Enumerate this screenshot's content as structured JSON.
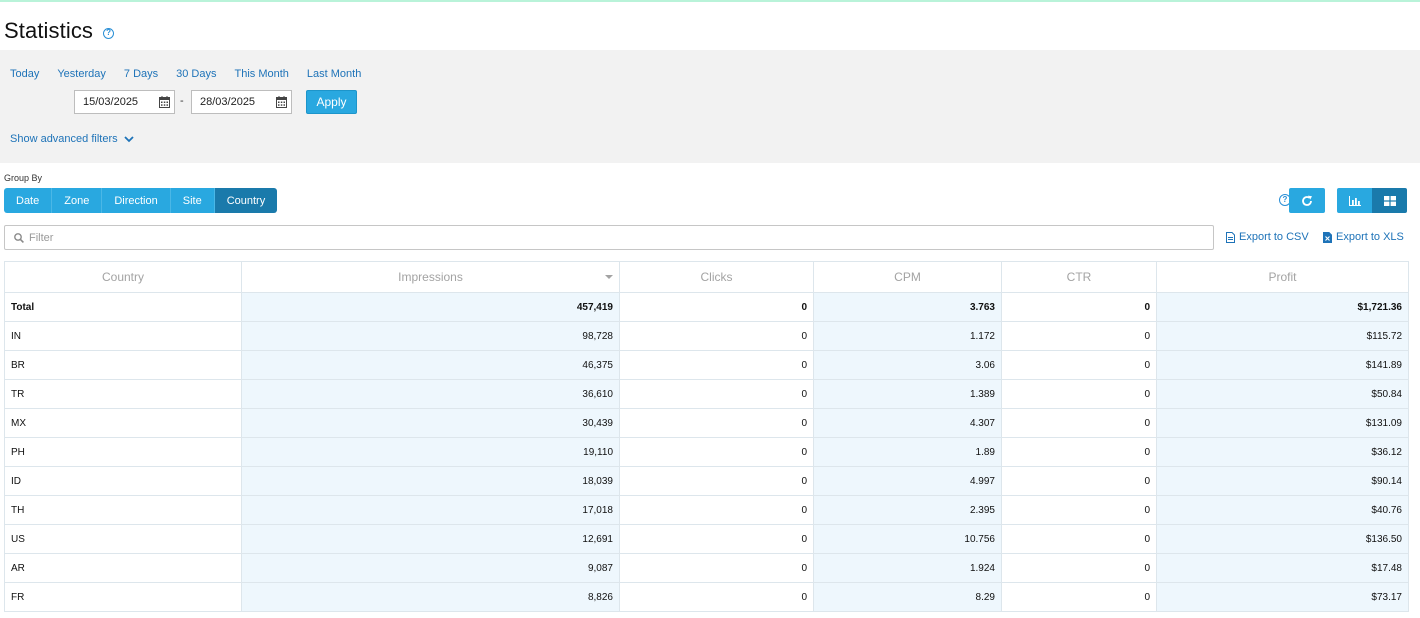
{
  "header": {
    "title": "Statistics"
  },
  "quick_ranges": [
    "Today",
    "Yesterday",
    "7 Days",
    "30 Days",
    "This Month",
    "Last Month"
  ],
  "date_range": {
    "from": "15/03/2025",
    "separator": "-",
    "to": "28/03/2025",
    "apply_label": "Apply"
  },
  "advanced_filters_label": "Show advanced filters",
  "group_by": {
    "label": "Group By",
    "tabs": [
      "Date",
      "Zone",
      "Direction",
      "Site",
      "Country"
    ],
    "active": "Country"
  },
  "filter": {
    "placeholder": "Filter"
  },
  "export": {
    "csv_label": "Export to CSV",
    "xls_label": "Export to XLS"
  },
  "table": {
    "columns": [
      "Country",
      "Impressions",
      "Clicks",
      "CPM",
      "CTR",
      "Profit"
    ],
    "sorted_column": "Impressions",
    "total": {
      "label": "Total",
      "impressions": "457,419",
      "clicks": "0",
      "cpm": "3.763",
      "ctr": "0",
      "profit": "$1,721.36"
    },
    "rows": [
      {
        "country": "IN",
        "impressions": "98,728",
        "clicks": "0",
        "cpm": "1.172",
        "ctr": "0",
        "profit": "$115.72"
      },
      {
        "country": "BR",
        "impressions": "46,375",
        "clicks": "0",
        "cpm": "3.06",
        "ctr": "0",
        "profit": "$141.89"
      },
      {
        "country": "TR",
        "impressions": "36,610",
        "clicks": "0",
        "cpm": "1.389",
        "ctr": "0",
        "profit": "$50.84"
      },
      {
        "country": "MX",
        "impressions": "30,439",
        "clicks": "0",
        "cpm": "4.307",
        "ctr": "0",
        "profit": "$131.09"
      },
      {
        "country": "PH",
        "impressions": "19,110",
        "clicks": "0",
        "cpm": "1.89",
        "ctr": "0",
        "profit": "$36.12"
      },
      {
        "country": "ID",
        "impressions": "18,039",
        "clicks": "0",
        "cpm": "4.997",
        "ctr": "0",
        "profit": "$90.14"
      },
      {
        "country": "TH",
        "impressions": "17,018",
        "clicks": "0",
        "cpm": "2.395",
        "ctr": "0",
        "profit": "$40.76"
      },
      {
        "country": "US",
        "impressions": "12,691",
        "clicks": "0",
        "cpm": "10.756",
        "ctr": "0",
        "profit": "$136.50"
      },
      {
        "country": "AR",
        "impressions": "9,087",
        "clicks": "0",
        "cpm": "1.924",
        "ctr": "0",
        "profit": "$17.48"
      },
      {
        "country": "FR",
        "impressions": "8,826",
        "clicks": "0",
        "cpm": "8.29",
        "ctr": "0",
        "profit": "$73.17"
      }
    ]
  },
  "icons": {
    "header_help": "help-icon",
    "calendar": "calendar-icon",
    "chevron": "chevron-down-icon",
    "search": "search-icon",
    "refresh": "refresh-icon",
    "chart": "bar-chart-icon",
    "table": "table-grid-icon",
    "csv": "csv-file-icon",
    "xls": "xls-file-icon"
  },
  "colors": {
    "accent": "#29a8e0",
    "accent_dark": "#1a7aab",
    "link": "#1e73b8",
    "panel": "#f2f2f2",
    "highlight_col": "#eef7fd"
  }
}
